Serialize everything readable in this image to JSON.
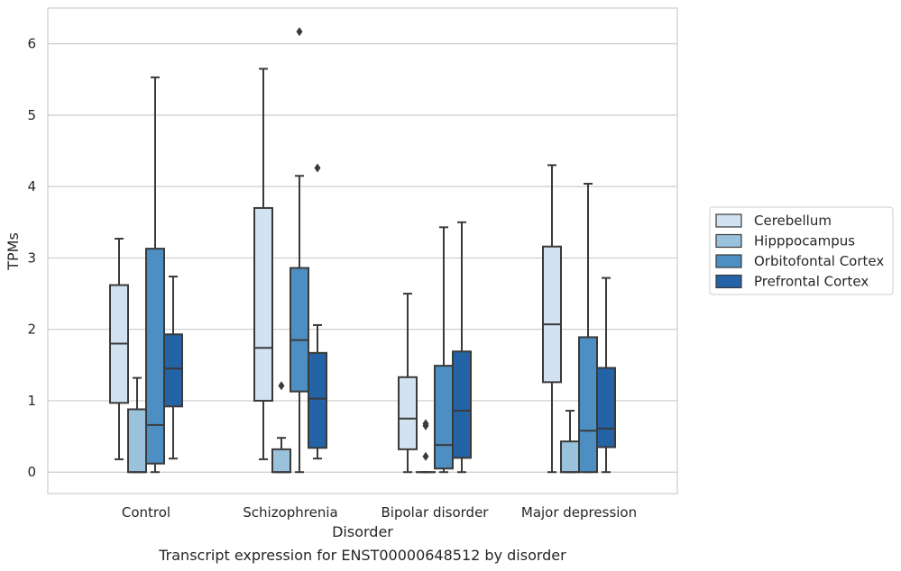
{
  "chart_data": {
    "type": "box",
    "title": "",
    "caption": "Transcript expression for ENST00000648512 by disorder",
    "xlabel": "Disorder",
    "ylabel": "TPMs",
    "ylim": [
      -0.3,
      6.5
    ],
    "yticks": [
      "0",
      "1",
      "2",
      "3",
      "4",
      "5",
      "6"
    ],
    "grid": true,
    "legend_position": "right",
    "categories": [
      "Control",
      "Schizophrenia",
      "Bipolar disorder",
      "Major depression"
    ],
    "series": [
      {
        "name": "Cerebellum",
        "color": "#d2e2f1",
        "boxes": [
          {
            "whislo": 0.18,
            "q1": 0.97,
            "med": 1.8,
            "q3": 2.62,
            "whishi": 3.27,
            "fliers": []
          },
          {
            "whislo": 0.18,
            "q1": 1.0,
            "med": 1.74,
            "q3": 3.7,
            "whishi": 5.65,
            "fliers": []
          },
          {
            "whislo": 0.0,
            "q1": 0.32,
            "med": 0.75,
            "q3": 1.33,
            "whishi": 2.5,
            "fliers": []
          },
          {
            "whislo": 0.0,
            "q1": 1.26,
            "med": 2.07,
            "q3": 3.16,
            "whishi": 4.3,
            "fliers": []
          }
        ]
      },
      {
        "name": "Hipppocampus",
        "color": "#9ac2dd",
        "boxes": [
          {
            "whislo": 0.0,
            "q1": 0.0,
            "med": 0.0,
            "q3": 0.88,
            "whishi": 1.32,
            "fliers": []
          },
          {
            "whislo": 0.0,
            "q1": 0.0,
            "med": 0.0,
            "q3": 0.32,
            "whishi": 0.48,
            "fliers": [
              1.21
            ]
          },
          {
            "whislo": 0.0,
            "q1": 0.0,
            "med": 0.0,
            "q3": 0.0,
            "whishi": 0.0,
            "fliers": [
              0.22,
              0.65,
              0.68
            ]
          },
          {
            "whislo": 0.0,
            "q1": 0.0,
            "med": 0.0,
            "q3": 0.43,
            "whishi": 0.86,
            "fliers": []
          }
        ]
      },
      {
        "name": "Orbitofontal Cortex",
        "color": "#4d8fc3",
        "boxes": [
          {
            "whislo": 0.0,
            "q1": 0.12,
            "med": 0.66,
            "q3": 3.13,
            "whishi": 5.53,
            "fliers": []
          },
          {
            "whislo": 0.0,
            "q1": 1.13,
            "med": 1.85,
            "q3": 2.86,
            "whishi": 4.15,
            "fliers": [
              6.17
            ]
          },
          {
            "whislo": 0.0,
            "q1": 0.05,
            "med": 0.38,
            "q3": 1.49,
            "whishi": 3.43,
            "fliers": []
          },
          {
            "whislo": 0.0,
            "q1": 0.0,
            "med": 0.58,
            "q3": 1.89,
            "whishi": 4.04,
            "fliers": []
          }
        ]
      },
      {
        "name": "Prefrontal Cortex",
        "color": "#2463a5",
        "boxes": [
          {
            "whislo": 0.19,
            "q1": 0.92,
            "med": 1.45,
            "q3": 1.93,
            "whishi": 2.74,
            "fliers": []
          },
          {
            "whislo": 0.19,
            "q1": 0.34,
            "med": 1.03,
            "q3": 1.67,
            "whishi": 2.06,
            "fliers": [
              4.26
            ]
          },
          {
            "whislo": 0.0,
            "q1": 0.2,
            "med": 0.86,
            "q3": 1.69,
            "whishi": 3.5,
            "fliers": []
          },
          {
            "whislo": 0.0,
            "q1": 0.35,
            "med": 0.61,
            "q3": 1.46,
            "whishi": 2.72,
            "fliers": []
          }
        ]
      }
    ]
  }
}
